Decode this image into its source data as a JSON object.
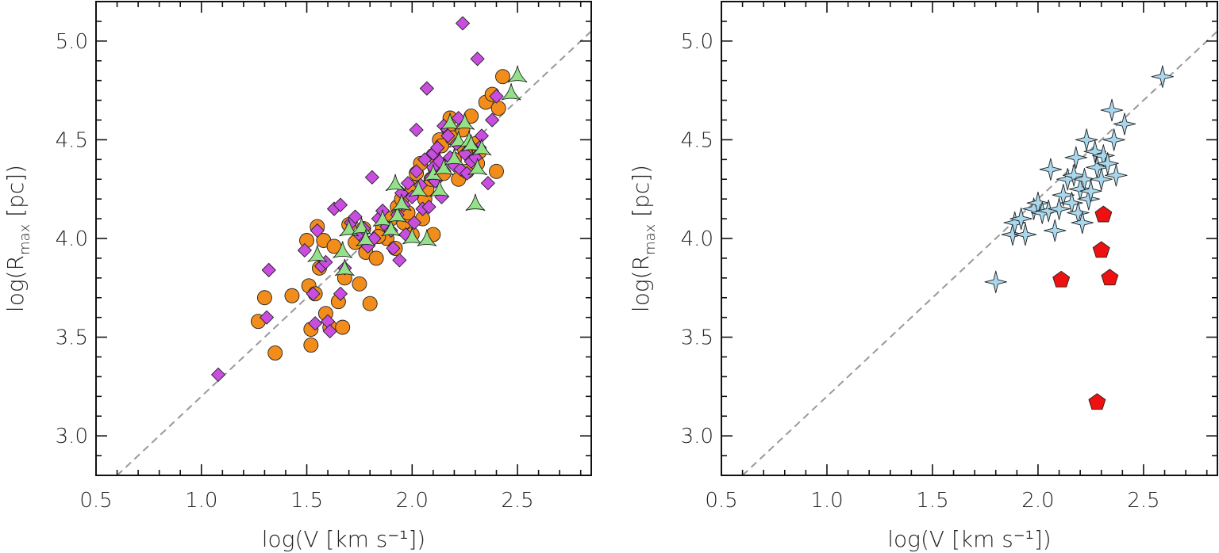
{
  "chart_data": [
    {
      "type": "scatter",
      "panel": "left",
      "xlabel": "log(V [km s⁻¹])",
      "ylabel": "log(R",
      "ylabel_sub": "max",
      "ylabel_end": " [pc])",
      "xlim": [
        0.5,
        2.85
      ],
      "ylim": [
        2.8,
        5.2
      ],
      "xticks": [
        "0.5",
        "1.0",
        "1.5",
        "2.0",
        "2.5"
      ],
      "yticks": [
        "3.0",
        "3.5",
        "4.0",
        "4.5",
        "5.0"
      ],
      "reference_line": {
        "style": "dashed",
        "color": "#999999",
        "x": [
          0.6,
          2.85
        ],
        "y": [
          2.8,
          5.05
        ]
      },
      "series": [
        {
          "marker": "circle",
          "color": "#f28c1a",
          "points": [
            [
              1.27,
              3.58
            ],
            [
              1.3,
              3.7
            ],
            [
              1.35,
              3.42
            ],
            [
              1.43,
              3.71
            ],
            [
              1.5,
              3.99
            ],
            [
              1.51,
              3.76
            ],
            [
              1.52,
              3.46
            ],
            [
              1.52,
              3.54
            ],
            [
              1.54,
              3.72
            ],
            [
              1.55,
              4.06
            ],
            [
              1.56,
              3.85
            ],
            [
              1.58,
              3.99
            ],
            [
              1.59,
              3.62
            ],
            [
              1.61,
              3.55
            ],
            [
              1.63,
              3.96
            ],
            [
              1.65,
              3.68
            ],
            [
              1.67,
              3.55
            ],
            [
              1.68,
              3.8
            ],
            [
              1.7,
              4.07
            ],
            [
              1.73,
              3.98
            ],
            [
              1.75,
              3.77
            ],
            [
              1.77,
              4.05
            ],
            [
              1.78,
              3.93
            ],
            [
              1.8,
              3.67
            ],
            [
              1.83,
              3.9
            ],
            [
              1.86,
              4.05
            ],
            [
              1.88,
              4.0
            ],
            [
              1.9,
              4.1
            ],
            [
              1.92,
              3.95
            ],
            [
              1.93,
              4.16
            ],
            [
              1.95,
              4.2
            ],
            [
              1.96,
              4.08
            ],
            [
              1.98,
              4.13
            ],
            [
              2.0,
              4.02
            ],
            [
              2.0,
              4.26
            ],
            [
              2.02,
              4.33
            ],
            [
              2.04,
              4.38
            ],
            [
              2.05,
              4.1
            ],
            [
              2.06,
              4.2
            ],
            [
              2.07,
              4.25
            ],
            [
              2.09,
              4.3
            ],
            [
              2.1,
              4.42
            ],
            [
              2.11,
              4.35
            ],
            [
              2.13,
              4.5
            ],
            [
              2.14,
              4.47
            ],
            [
              2.15,
              4.33
            ],
            [
              2.17,
              4.56
            ],
            [
              2.18,
              4.61
            ],
            [
              2.19,
              4.51
            ],
            [
              2.2,
              4.4
            ],
            [
              2.22,
              4.3
            ],
            [
              2.24,
              4.55
            ],
            [
              2.25,
              4.45
            ],
            [
              2.26,
              4.34
            ],
            [
              2.28,
              4.62
            ],
            [
              2.3,
              4.48
            ],
            [
              2.31,
              4.38
            ],
            [
              2.32,
              4.44
            ],
            [
              2.35,
              4.69
            ],
            [
              2.38,
              4.73
            ],
            [
              2.4,
              4.34
            ],
            [
              2.41,
              4.66
            ],
            [
              2.43,
              4.82
            ],
            [
              2.1,
              4.02
            ],
            [
              1.84,
              4.01
            ]
          ]
        },
        {
          "marker": "diamond",
          "color": "#c94ee0",
          "points": [
            [
              1.08,
              3.31
            ],
            [
              1.31,
              3.6
            ],
            [
              1.32,
              3.84
            ],
            [
              1.49,
              3.94
            ],
            [
              1.53,
              3.72
            ],
            [
              1.54,
              3.57
            ],
            [
              1.55,
              4.04
            ],
            [
              1.57,
              3.86
            ],
            [
              1.59,
              3.88
            ],
            [
              1.6,
              3.58
            ],
            [
              1.61,
              3.53
            ],
            [
              1.63,
              4.15
            ],
            [
              1.66,
              3.72
            ],
            [
              1.66,
              4.17
            ],
            [
              1.68,
              3.85
            ],
            [
              1.71,
              4.08
            ],
            [
              1.73,
              4.11
            ],
            [
              1.75,
              4.02
            ],
            [
              1.77,
              4.05
            ],
            [
              1.78,
              3.99
            ],
            [
              1.79,
              3.96
            ],
            [
              1.81,
              4.31
            ],
            [
              1.82,
              4.0
            ],
            [
              1.84,
              4.1
            ],
            [
              1.86,
              4.14
            ],
            [
              1.88,
              4.06
            ],
            [
              1.9,
              4.04
            ],
            [
              1.91,
              3.95
            ],
            [
              1.93,
              4.12
            ],
            [
              1.94,
              3.89
            ],
            [
              1.95,
              4.23
            ],
            [
              1.96,
              4.17
            ],
            [
              1.97,
              4.02
            ],
            [
              1.98,
              4.28
            ],
            [
              2.0,
              4.21
            ],
            [
              2.01,
              4.08
            ],
            [
              2.02,
              4.34
            ],
            [
              2.02,
              4.55
            ],
            [
              2.04,
              4.27
            ],
            [
              2.05,
              4.15
            ],
            [
              2.06,
              4.4
            ],
            [
              2.07,
              4.76
            ],
            [
              2.08,
              4.16
            ],
            [
              2.09,
              4.31
            ],
            [
              2.1,
              4.43
            ],
            [
              2.1,
              4.36
            ],
            [
              2.11,
              4.29
            ],
            [
              2.12,
              4.46
            ],
            [
              2.13,
              4.39
            ],
            [
              2.14,
              4.21
            ],
            [
              2.15,
              4.57
            ],
            [
              2.17,
              4.52
            ],
            [
              2.18,
              4.41
            ],
            [
              2.2,
              4.37
            ],
            [
              2.21,
              4.48
            ],
            [
              2.22,
              4.61
            ],
            [
              2.23,
              4.35
            ],
            [
              2.24,
              5.09
            ],
            [
              2.25,
              4.43
            ],
            [
              2.26,
              4.33
            ],
            [
              2.28,
              4.39
            ],
            [
              2.3,
              4.41
            ],
            [
              2.31,
              4.91
            ],
            [
              2.32,
              4.46
            ],
            [
              2.33,
              4.52
            ],
            [
              2.36,
              4.28
            ],
            [
              2.38,
              4.6
            ],
            [
              2.4,
              4.72
            ]
          ]
        },
        {
          "marker": "triangle",
          "color": "#93e28a",
          "points": [
            [
              1.55,
              3.91
            ],
            [
              1.67,
              3.93
            ],
            [
              1.68,
              3.84
            ],
            [
              1.7,
              4.04
            ],
            [
              1.76,
              4.05
            ],
            [
              1.78,
              3.99
            ],
            [
              1.86,
              4.09
            ],
            [
              1.9,
              4.04
            ],
            [
              1.92,
              4.27
            ],
            [
              1.93,
              4.11
            ],
            [
              1.95,
              4.17
            ],
            [
              2.0,
              4.0
            ],
            [
              2.03,
              4.24
            ],
            [
              2.07,
              3.99
            ],
            [
              2.1,
              4.32
            ],
            [
              2.13,
              4.24
            ],
            [
              2.15,
              4.35
            ],
            [
              2.18,
              4.58
            ],
            [
              2.2,
              4.4
            ],
            [
              2.22,
              4.49
            ],
            [
              2.25,
              4.58
            ],
            [
              2.27,
              4.49
            ],
            [
              2.28,
              4.47
            ],
            [
              2.3,
              4.17
            ],
            [
              2.31,
              4.35
            ],
            [
              2.33,
              4.45
            ],
            [
              2.47,
              4.73
            ],
            [
              2.5,
              4.82
            ]
          ]
        }
      ]
    },
    {
      "type": "scatter",
      "panel": "right",
      "xlabel": "log(V [km s⁻¹])",
      "ylabel": "log(R",
      "ylabel_sub": "max",
      "ylabel_end": " [pc])",
      "xlim": [
        0.5,
        2.85
      ],
      "ylim": [
        2.8,
        5.2
      ],
      "xticks": [
        "0.5",
        "1.0",
        "1.5",
        "2.0",
        "2.5"
      ],
      "yticks": [
        "3.0",
        "3.5",
        "4.0",
        "4.5",
        "5.0"
      ],
      "reference_line": {
        "style": "dashed",
        "color": "#999999",
        "x": [
          0.6,
          2.85
        ],
        "y": [
          2.8,
          5.05
        ]
      },
      "series": [
        {
          "marker": "star4",
          "color": "#a9d8ee",
          "points": [
            [
              1.8,
              3.78
            ],
            [
              1.88,
              4.02
            ],
            [
              1.89,
              4.08
            ],
            [
              1.92,
              4.1
            ],
            [
              1.94,
              4.02
            ],
            [
              1.98,
              4.15
            ],
            [
              2.0,
              4.18
            ],
            [
              2.02,
              4.13
            ],
            [
              2.05,
              4.14
            ],
            [
              2.06,
              4.35
            ],
            [
              2.08,
              4.04
            ],
            [
              2.1,
              4.15
            ],
            [
              2.12,
              4.22
            ],
            [
              2.14,
              4.3
            ],
            [
              2.16,
              4.18
            ],
            [
              2.17,
              4.32
            ],
            [
              2.18,
              4.41
            ],
            [
              2.19,
              4.13
            ],
            [
              2.2,
              4.25
            ],
            [
              2.21,
              4.08
            ],
            [
              2.22,
              4.3
            ],
            [
              2.23,
              4.5
            ],
            [
              2.24,
              4.2
            ],
            [
              2.25,
              4.24
            ],
            [
              2.27,
              4.44
            ],
            [
              2.28,
              4.36
            ],
            [
              2.3,
              4.3
            ],
            [
              2.31,
              4.42
            ],
            [
              2.33,
              4.38
            ],
            [
              2.35,
              4.65
            ],
            [
              2.36,
              4.5
            ],
            [
              2.37,
              4.32
            ],
            [
              2.41,
              4.58
            ],
            [
              2.59,
              4.82
            ]
          ]
        },
        {
          "marker": "pentagon",
          "color": "#ee1111",
          "points": [
            [
              2.11,
              3.79
            ],
            [
              2.28,
              3.17
            ],
            [
              2.3,
              3.94
            ],
            [
              2.31,
              4.12
            ],
            [
              2.34,
              3.8
            ]
          ]
        }
      ]
    }
  ]
}
